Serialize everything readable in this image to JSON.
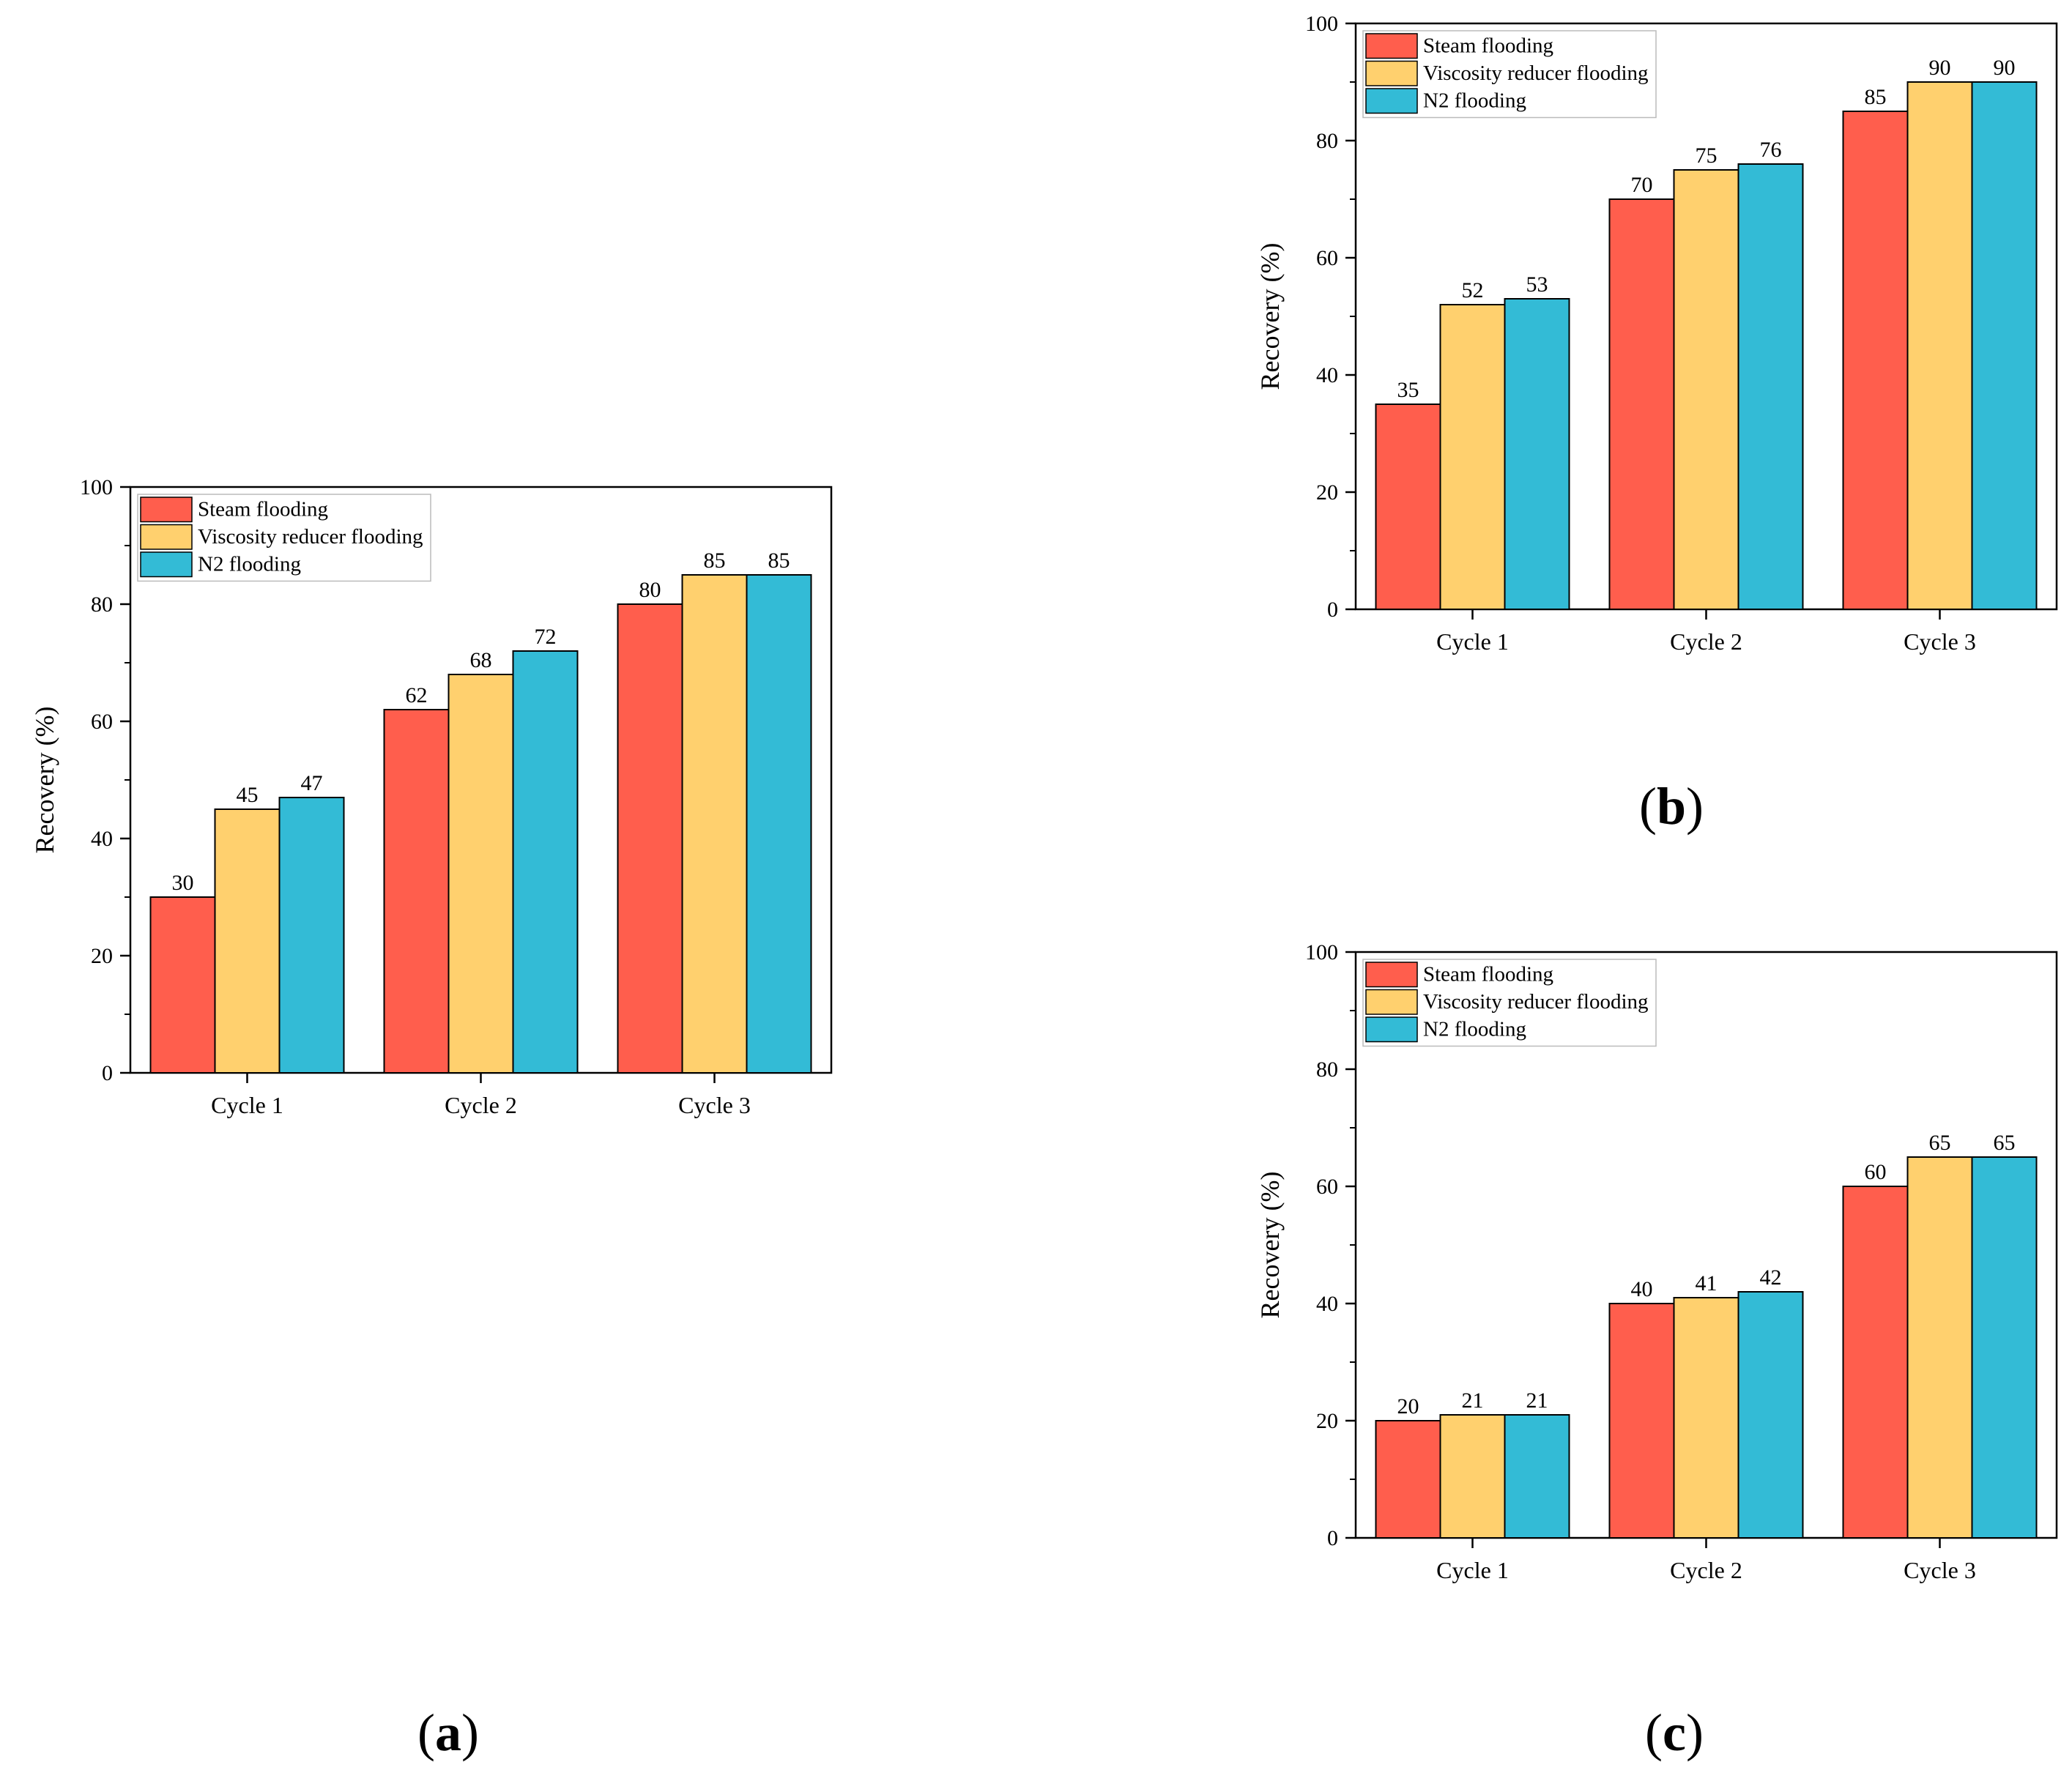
{
  "colors": {
    "steam": "#FF5E4D",
    "viscosity": "#FFD06E",
    "n2": "#33BBD6"
  },
  "chart_data": [
    {
      "panel": "a",
      "type": "bar",
      "categories": [
        "Cycle 1",
        "Cycle 2",
        "Cycle 3"
      ],
      "series": [
        {
          "name": "Steam flooding",
          "values": [
            30,
            62,
            80
          ]
        },
        {
          "name": "Viscosity reducer flooding",
          "values": [
            45,
            68,
            85
          ]
        },
        {
          "name": "N2 flooding",
          "values": [
            47,
            72,
            85
          ]
        }
      ],
      "ylabel": "Recovery (%)",
      "xlabel": "",
      "ylim": [
        0,
        100
      ],
      "yticks": [
        "0",
        "20",
        "40",
        "60",
        "80",
        "100"
      ],
      "legend": "top-left",
      "grid": false
    },
    {
      "panel": "b",
      "type": "bar",
      "categories": [
        "Cycle 1",
        "Cycle 2",
        "Cycle 3"
      ],
      "series": [
        {
          "name": "Steam flooding",
          "values": [
            35,
            70,
            85
          ]
        },
        {
          "name": "Viscosity reducer flooding",
          "values": [
            52,
            75,
            90
          ]
        },
        {
          "name": "N2 flooding",
          "values": [
            53,
            76,
            90
          ]
        }
      ],
      "ylabel": "Recovery (%)",
      "xlabel": "",
      "ylim": [
        0,
        100
      ],
      "yticks": [
        "0",
        "20",
        "40",
        "60",
        "80",
        "100"
      ],
      "legend": "top-left",
      "grid": false
    },
    {
      "panel": "c",
      "type": "bar",
      "categories": [
        "Cycle 1",
        "Cycle 2",
        "Cycle 3"
      ],
      "series": [
        {
          "name": "Steam flooding",
          "values": [
            20,
            40,
            60
          ]
        },
        {
          "name": "Viscosity reducer flooding",
          "values": [
            21,
            41,
            65
          ]
        },
        {
          "name": "N2 flooding",
          "values": [
            21,
            42,
            65
          ]
        }
      ],
      "ylabel": "Recovery (%)",
      "xlabel": "",
      "ylim": [
        0,
        100
      ],
      "yticks": [
        "0",
        "20",
        "40",
        "60",
        "80",
        "100"
      ],
      "legend": "top-left",
      "grid": false
    }
  ],
  "panel_labels": {
    "a": {
      "open": "(",
      "letter": "a",
      "close": ")"
    },
    "b": {
      "open": "(",
      "letter": "b",
      "close": ")"
    },
    "c": {
      "open": "(",
      "letter": "c",
      "close": ")"
    }
  }
}
